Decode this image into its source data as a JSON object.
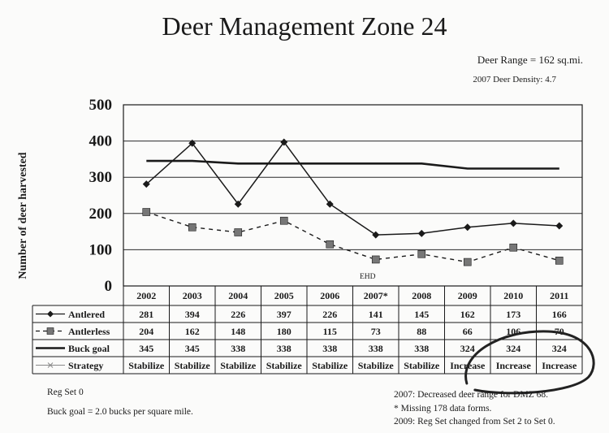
{
  "title": "Deer Management Zone 24",
  "deer_range": "Deer  Range = 162 sq.mi.",
  "density": "2007 Deer Density: 4.7",
  "chart_data": {
    "type": "line",
    "title": "Deer Management Zone 24",
    "ylabel": "Number of deer harvested",
    "xlabel": "",
    "ylim": [
      0,
      500
    ],
    "yticks": [
      0,
      100,
      200,
      300,
      400,
      500
    ],
    "categories": [
      "2002",
      "2003",
      "2004",
      "2005",
      "2006",
      "2007*",
      "2008",
      "2009",
      "2010",
      "2011"
    ],
    "series": [
      {
        "name": "Antlered",
        "values": [
          281,
          394,
          226,
          397,
          226,
          141,
          145,
          162,
          173,
          166
        ],
        "style": "solid-diamond"
      },
      {
        "name": "Antlerless",
        "values": [
          204,
          162,
          148,
          180,
          115,
          73,
          88,
          66,
          106,
          70
        ],
        "style": "dashed-square"
      },
      {
        "name": "Buck goal",
        "values": [
          345,
          345,
          338,
          338,
          338,
          338,
          338,
          324,
          324,
          324
        ],
        "style": "thick-solid"
      }
    ],
    "strategy": {
      "name": "Strategy",
      "values": [
        "Stabilize",
        "Stabilize",
        "Stabilize",
        "Stabilize",
        "Stabilize",
        "Stabilize",
        "Stabilize",
        "Increase",
        "Increase",
        "Increase"
      ]
    },
    "annotation": {
      "text": "EHD",
      "category": "2007*"
    },
    "grid": true
  },
  "notes": {
    "reg_set": "Reg Set 0",
    "buck_goal": "Buck goal = 2.0 bucks per square mile.",
    "n2007": "2007: Decreased deer range for DMZ 68.",
    "missing": "* Missing 178 data forms.",
    "n2009": "2009:  Reg Set changed from Set 2 to Set 0."
  },
  "colors": {
    "ink": "#1a1a1a",
    "grid": "#2a2a2a",
    "circle": "#222222"
  }
}
